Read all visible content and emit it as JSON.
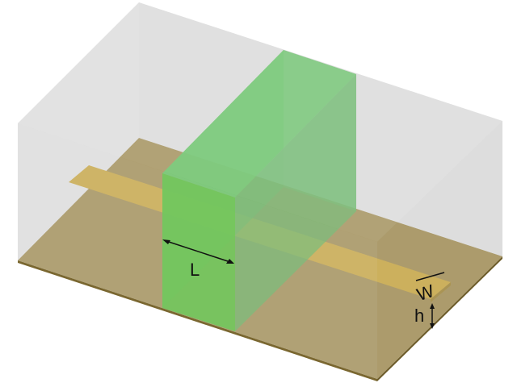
{
  "labels": {
    "length": "L",
    "width": "W",
    "height": "h"
  },
  "colors": {
    "background": "#ffffff",
    "air_box": "#cfcfcf",
    "substrate": "#9c8541",
    "strip": "#caa22c",
    "green_block": "#3ec43e",
    "dimension_line": "#111111"
  }
}
